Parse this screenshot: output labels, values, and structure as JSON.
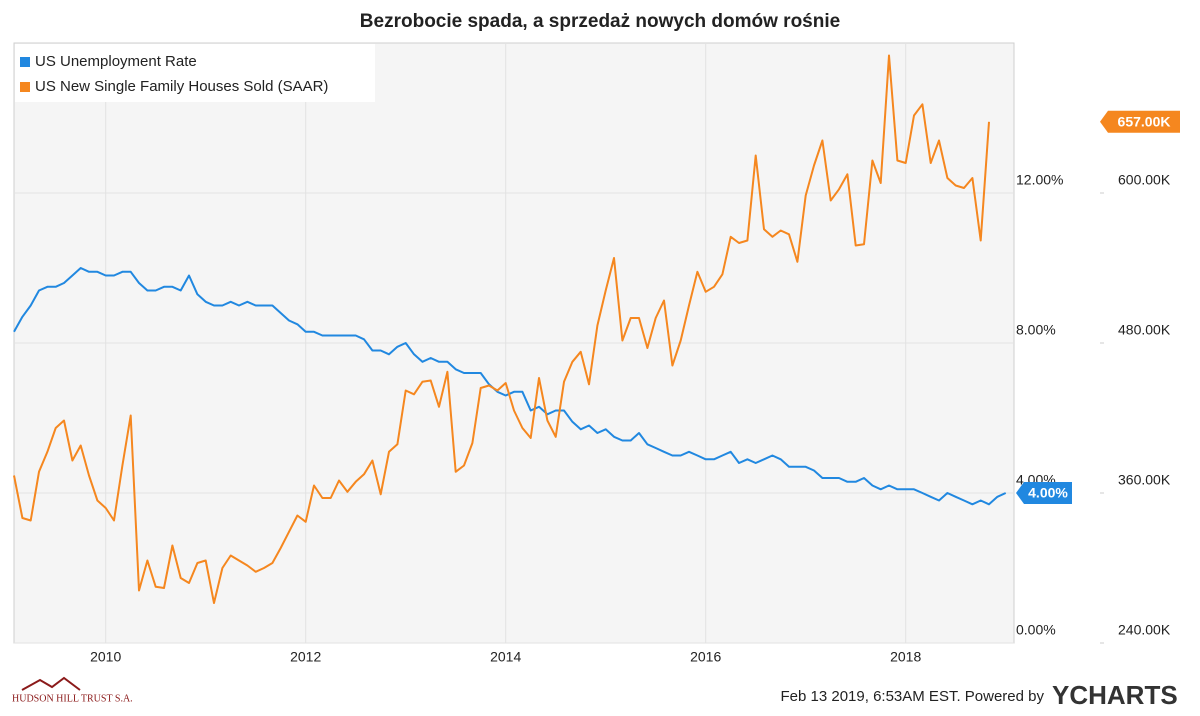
{
  "chart_data": {
    "type": "line",
    "title": "Bezrobocie spada, a sprzedaż nowych domów rośnie",
    "x": [
      2009.083,
      2009.167,
      2009.25,
      2009.333,
      2009.417,
      2009.5,
      2009.583,
      2009.667,
      2009.75,
      2009.833,
      2009.917,
      2010,
      2010.083,
      2010.167,
      2010.25,
      2010.333,
      2010.417,
      2010.5,
      2010.583,
      2010.667,
      2010.75,
      2010.833,
      2010.917,
      2011,
      2011.083,
      2011.167,
      2011.25,
      2011.333,
      2011.417,
      2011.5,
      2011.583,
      2011.667,
      2011.75,
      2011.833,
      2011.917,
      2012,
      2012.083,
      2012.167,
      2012.25,
      2012.333,
      2012.417,
      2012.5,
      2012.583,
      2012.667,
      2012.75,
      2012.833,
      2012.917,
      2013,
      2013.083,
      2013.167,
      2013.25,
      2013.333,
      2013.417,
      2013.5,
      2013.583,
      2013.667,
      2013.75,
      2013.833,
      2013.917,
      2014,
      2014.083,
      2014.167,
      2014.25,
      2014.333,
      2014.417,
      2014.5,
      2014.583,
      2014.667,
      2014.75,
      2014.833,
      2014.917,
      2015,
      2015.083,
      2015.167,
      2015.25,
      2015.333,
      2015.417,
      2015.5,
      2015.583,
      2015.667,
      2015.75,
      2015.833,
      2015.917,
      2016,
      2016.083,
      2016.167,
      2016.25,
      2016.333,
      2016.417,
      2016.5,
      2016.583,
      2016.667,
      2016.75,
      2016.833,
      2016.917,
      2017,
      2017.083,
      2017.167,
      2017.25,
      2017.333,
      2017.417,
      2017.5,
      2017.583,
      2017.667,
      2017.75,
      2017.833,
      2017.917,
      2018,
      2018.083,
      2018.167,
      2018.25,
      2018.333,
      2018.417,
      2018.5,
      2018.583,
      2018.667,
      2018.75,
      2018.833,
      2018.917,
      2019
    ],
    "series": [
      {
        "name": "US Unemployment Rate",
        "color": "#2188e0",
        "axis": "y",
        "end_label": "4.00%",
        "values": [
          8.3,
          8.7,
          9.0,
          9.4,
          9.5,
          9.5,
          9.6,
          9.8,
          10.0,
          9.9,
          9.9,
          9.8,
          9.8,
          9.9,
          9.9,
          9.6,
          9.4,
          9.4,
          9.5,
          9.5,
          9.4,
          9.8,
          9.3,
          9.1,
          9.0,
          9.0,
          9.1,
          9.0,
          9.1,
          9.0,
          9.0,
          9.0,
          8.8,
          8.6,
          8.5,
          8.3,
          8.3,
          8.2,
          8.2,
          8.2,
          8.2,
          8.2,
          8.1,
          7.8,
          7.8,
          7.7,
          7.9,
          8.0,
          7.7,
          7.5,
          7.6,
          7.5,
          7.5,
          7.3,
          7.2,
          7.2,
          7.2,
          6.9,
          6.7,
          6.6,
          6.7,
          6.7,
          6.2,
          6.3,
          6.1,
          6.2,
          6.2,
          5.9,
          5.7,
          5.8,
          5.6,
          5.7,
          5.5,
          5.4,
          5.4,
          5.6,
          5.3,
          5.2,
          5.1,
          5.0,
          5.0,
          5.1,
          5.0,
          4.9,
          4.9,
          5.0,
          5.1,
          4.8,
          4.9,
          4.8,
          4.9,
          5.0,
          4.9,
          4.7,
          4.7,
          4.7,
          4.6,
          4.4,
          4.4,
          4.4,
          4.3,
          4.3,
          4.4,
          4.2,
          4.1,
          4.2,
          4.1,
          4.1,
          4.1,
          4.0,
          3.9,
          3.8,
          4.0,
          3.9,
          3.8,
          3.7,
          3.8,
          3.7,
          3.9,
          4.0
        ]
      },
      {
        "name": "US New Single Family Houses Sold (SAAR)",
        "color": "#f5871f",
        "axis": "y2",
        "end_label": "657.00K",
        "values": [
          374000,
          340000,
          338000,
          377000,
          393000,
          412000,
          418000,
          386000,
          398000,
          374000,
          354000,
          348000,
          338000,
          382000,
          422000,
          282000,
          306000,
          285000,
          284000,
          318000,
          292000,
          288000,
          304000,
          306000,
          272000,
          300000,
          310000,
          306000,
          302000,
          297000,
          300000,
          304000,
          316000,
          329000,
          342000,
          337000,
          366000,
          356000,
          356000,
          370000,
          361000,
          369000,
          375000,
          386000,
          359000,
          393000,
          399000,
          442000,
          439000,
          449000,
          450000,
          429000,
          457000,
          377000,
          382000,
          400000,
          444000,
          446000,
          442000,
          448000,
          426000,
          412000,
          404000,
          452000,
          418000,
          405000,
          449000,
          465000,
          473000,
          447000,
          494000,
          522000,
          548000,
          482000,
          500000,
          500000,
          476000,
          500000,
          514000,
          462000,
          482000,
          510000,
          537000,
          521000,
          525000,
          535000,
          565000,
          560000,
          562000,
          630000,
          571000,
          565000,
          570000,
          567000,
          545000,
          598000,
          622000,
          642000,
          594000,
          603000,
          615000,
          558000,
          559000,
          626000,
          608000,
          710000,
          626000,
          624000,
          662000,
          671000,
          624000,
          642000,
          612000,
          606000,
          604000,
          612000,
          562000,
          657000,
          null,
          null
        ]
      }
    ],
    "xlim": [
      2009.083,
      2019.083
    ],
    "xticks": [
      2010,
      2012,
      2014,
      2016,
      2018
    ],
    "ylim": [
      0,
      16
    ],
    "yticks": [
      {
        "value": 0,
        "label": "0.00%"
      },
      {
        "value": 4,
        "label": "4.00%"
      },
      {
        "value": 8,
        "label": "8.00%"
      },
      {
        "value": 12,
        "label": "12.00%"
      }
    ],
    "y2lim": [
      240000,
      720000
    ],
    "y2ticks": [
      {
        "value": 240000,
        "label": "240.00K"
      },
      {
        "value": 360000,
        "label": "360.00K"
      },
      {
        "value": 480000,
        "label": "480.00K"
      },
      {
        "value": 600000,
        "label": "600.00K"
      }
    ],
    "grid": true,
    "legend": "top-left"
  },
  "footer": {
    "timestamp": "Feb 13 2019, 6:53AM EST.  Powered by",
    "brand": "YCHARTS",
    "source_logo": "HUDSON HILL TRUST S.A."
  }
}
